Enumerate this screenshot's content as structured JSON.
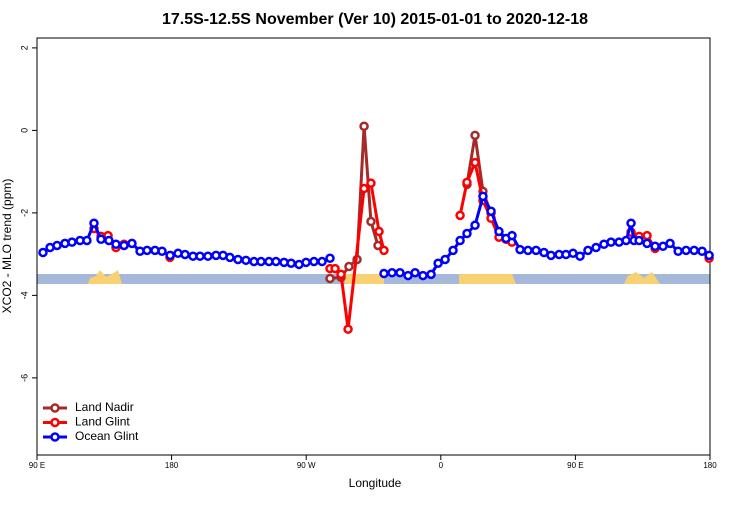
{
  "chart_data": {
    "type": "line",
    "title": "17.5S-12.5S November (Ver 10)   2015-01-01 to 2020-12-18",
    "x_label": "Longitude",
    "y_label": "XCO2 - MLO trend (ppm)",
    "xlim": [
      90,
      540
    ],
    "xticks": [
      {
        "value": 90,
        "label": "90 E"
      },
      {
        "value": 180,
        "label": "180"
      },
      {
        "value": 270,
        "label": "90 W"
      },
      {
        "value": 360,
        "label": "0"
      },
      {
        "value": 450,
        "label": "90 E"
      },
      {
        "value": 540,
        "label": "180"
      }
    ],
    "ylim": [
      -7.87,
      2.24
    ],
    "yticks": [
      2,
      0,
      -2,
      -4,
      -6
    ],
    "legend": "bottom-left",
    "series": [
      {
        "name": "Land Nadir",
        "color": "#a52a2a",
        "x": [
          285.9,
          293.3,
          298.6,
          304,
          308.7,
          313.3,
          318,
          null,
          377.5,
          382.9,
          388.2,
          393.6
        ],
        "values": [
          -3.59,
          -3.56,
          -3.3,
          -3.13,
          0.1,
          -2.21,
          -2.79,
          null,
          -1.31,
          -0.12,
          -1.48,
          -2.01
        ]
      },
      {
        "name": "Land Glint",
        "color": "#ff0000",
        "x": [
          128.1,
          132.8,
          137.5,
          142.8,
          148.2,
          null,
          178.9,
          null,
          285.9,
          289.3,
          293.3,
          298,
          308.7,
          313.3,
          318.7,
          322,
          null,
          372.9,
          377.5,
          382.9,
          388.2,
          393.6,
          398.9,
          403.6,
          407.6,
          null,
          487.2,
          492.6,
          497.9,
          503.3,
          null,
          539.4
        ],
        "values": [
          -2.38,
          -2.57,
          -2.55,
          -2.84,
          -2.76,
          null,
          -3.08,
          null,
          -3.35,
          -3.35,
          -3.49,
          -4.82,
          -1.41,
          -1.28,
          -2.45,
          -2.91,
          null,
          -2.06,
          -1.26,
          -0.78,
          -1.7,
          -2.13,
          -2.59,
          -2.64,
          -2.71,
          null,
          -2.47,
          -2.57,
          -2.55,
          -2.86,
          null,
          -3.1
        ]
      },
      {
        "name": "Ocean Glint",
        "color": "#0000ff",
        "x": [
          94,
          98.7,
          103.4,
          108.7,
          113.4,
          118.8,
          123.4,
          128.1,
          132.8,
          138.1,
          142.8,
          148.2,
          153.5,
          158.9,
          163.6,
          168.9,
          173.6,
          179,
          184.3,
          189,
          194.3,
          199,
          204.3,
          209.7,
          214.4,
          219,
          224.4,
          229.7,
          235.1,
          239.8,
          245.1,
          249.8,
          255.2,
          259.9,
          265.2,
          269.9,
          275.2,
          280.6,
          285.9,
          null,
          322,
          327.4,
          332.7,
          338.1,
          342.8,
          348.1,
          353.5,
          358.2,
          362.9,
          368.2,
          372.9,
          377.5,
          382.9,
          388.2,
          393.6,
          398.9,
          403.6,
          407.6,
          413,
          418.3,
          423.7,
          429,
          433.7,
          439.1,
          443.7,
          448.4,
          453.1,
          458.4,
          463.8,
          469.1,
          473.8,
          479.2,
          483.9,
          487.2,
          489.2,
          492.6,
          497.9,
          503.3,
          508.6,
          513.3,
          518.7,
          524,
          529.4,
          534.7,
          539.4
        ],
        "values": [
          -2.96,
          -2.84,
          -2.79,
          -2.74,
          -2.71,
          -2.67,
          -2.67,
          -2.25,
          -2.64,
          -2.67,
          -2.76,
          -2.79,
          -2.74,
          -2.93,
          -2.91,
          -2.91,
          -2.93,
          -3.03,
          -2.98,
          -3.01,
          -3.05,
          -3.05,
          -3.05,
          -3.03,
          -3.03,
          -3.08,
          -3.13,
          -3.15,
          -3.18,
          -3.18,
          -3.18,
          -3.18,
          -3.2,
          -3.22,
          -3.25,
          -3.2,
          -3.18,
          -3.18,
          -3.1,
          null,
          -3.47,
          -3.45,
          -3.45,
          -3.52,
          -3.45,
          -3.52,
          -3.49,
          -3.22,
          -3.13,
          -2.91,
          -2.67,
          -2.5,
          -2.3,
          -1.6,
          -1.96,
          -2.45,
          -2.62,
          -2.55,
          -2.89,
          -2.91,
          -2.91,
          -2.96,
          -3.03,
          -3.01,
          -3.01,
          -2.98,
          -3.05,
          -2.91,
          -2.84,
          -2.76,
          -2.71,
          -2.71,
          -2.67,
          -2.25,
          -2.67,
          -2.67,
          -2.74,
          -2.81,
          -2.81,
          -2.74,
          -2.93,
          -2.91,
          -2.91,
          -2.93,
          -3.03
        ]
      }
    ]
  }
}
